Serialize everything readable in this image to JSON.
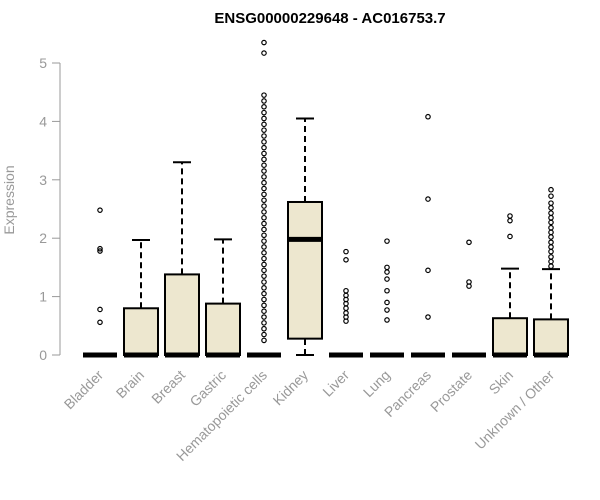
{
  "chart_data": {
    "type": "boxplot",
    "title": "ENSG00000229648 - AC016753.7",
    "ylabel": "Expression",
    "ylim": [
      0,
      5.4
    ],
    "yticks": [
      0,
      1,
      2,
      3,
      4,
      5
    ],
    "box_color": "#ede7cf",
    "categories": [
      "Bladder",
      "Brain",
      "Breast",
      "Gastric",
      "Hematopoietic cells",
      "Kidney",
      "Liver",
      "Lung",
      "Pancreas",
      "Prostate",
      "Skin",
      "Unknown / Other"
    ],
    "boxes": [
      {
        "q1": 0,
        "median": 0,
        "q3": 0,
        "low": 0,
        "high": 0,
        "outliers": [
          2.48,
          1.82,
          1.78,
          0.78,
          0.56
        ]
      },
      {
        "q1": 0,
        "median": 0,
        "q3": 0.8,
        "low": 0,
        "high": 1.97,
        "outliers": []
      },
      {
        "q1": 0,
        "median": 0,
        "q3": 1.38,
        "low": 0,
        "high": 3.3,
        "outliers": []
      },
      {
        "q1": 0,
        "median": 0,
        "q3": 0.88,
        "low": 0,
        "high": 1.98,
        "outliers": []
      },
      {
        "q1": 0,
        "median": 0,
        "q3": 0,
        "low": 0,
        "high": 0,
        "outliers": [
          5.35,
          5.17,
          4.45,
          4.35,
          4.25,
          4.15,
          4.05,
          3.95,
          3.85,
          3.75,
          3.65,
          3.55,
          3.45,
          3.35,
          3.25,
          3.15,
          3.05,
          2.95,
          2.85,
          2.75,
          2.65,
          2.55,
          2.45,
          2.35,
          2.25,
          2.15,
          2.05,
          1.95,
          1.85,
          1.75,
          1.65,
          1.55,
          1.45,
          1.35,
          1.25,
          1.15,
          1.05,
          0.95,
          0.85,
          0.75,
          0.65,
          0.55,
          0.45,
          0.35,
          0.25
        ]
      },
      {
        "q1": 0.28,
        "median": 1.98,
        "q3": 2.62,
        "low": 0,
        "high": 4.05,
        "outliers": []
      },
      {
        "q1": 0,
        "median": 0,
        "q3": 0,
        "low": 0,
        "high": 0,
        "outliers": [
          1.77,
          1.63,
          1.1,
          1.02,
          0.95,
          0.88,
          0.8,
          0.72,
          0.65,
          0.58
        ]
      },
      {
        "q1": 0,
        "median": 0,
        "q3": 0,
        "low": 0,
        "high": 0,
        "outliers": [
          1.95,
          1.5,
          1.42,
          1.3,
          1.1,
          0.9,
          0.77,
          0.6
        ]
      },
      {
        "q1": 0,
        "median": 0,
        "q3": 0,
        "low": 0,
        "high": 0,
        "outliers": [
          4.08,
          2.67,
          1.45,
          0.65
        ]
      },
      {
        "q1": 0,
        "median": 0,
        "q3": 0,
        "low": 0,
        "high": 0,
        "outliers": [
          1.93,
          1.25,
          1.18
        ]
      },
      {
        "q1": 0,
        "median": 0,
        "q3": 0.63,
        "low": 0,
        "high": 1.48,
        "outliers": [
          2.38,
          2.3,
          2.03
        ]
      },
      {
        "q1": 0,
        "median": 0,
        "q3": 0.61,
        "low": 0,
        "high": 1.47,
        "outliers": [
          2.83,
          2.72,
          2.6,
          2.52,
          2.43,
          2.35,
          2.27,
          2.18,
          2.1,
          2.02,
          1.93,
          1.85,
          1.77,
          1.68,
          1.6,
          1.52
        ]
      }
    ]
  }
}
